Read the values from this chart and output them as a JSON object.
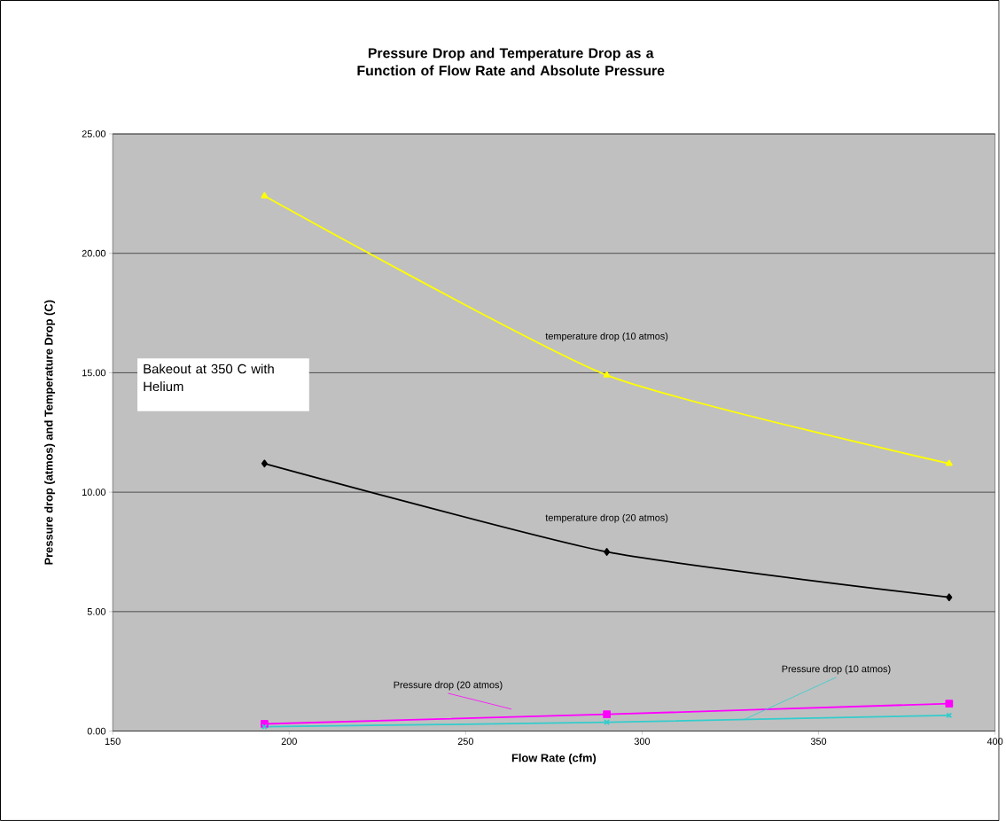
{
  "chart_data": {
    "type": "line",
    "title": "Pressure Drop and Temperature Drop as a Function of Flow Rate and Absolute Pressure",
    "xlabel": "Flow Rate (cfm)",
    "ylabel": "Pressure drop (atmos) and Temperature Drop (C)",
    "x": [
      193,
      290,
      387
    ],
    "series": [
      {
        "name": "temperature drop (10 atmos)",
        "color": "#ffff00",
        "marker": "triangle",
        "values": [
          22.4,
          14.9,
          11.2
        ]
      },
      {
        "name": "temperature drop (20 atmos)",
        "color": "#000000",
        "marker": "diamond",
        "values": [
          11.2,
          7.5,
          5.6
        ]
      },
      {
        "name": "Pressure drop (20 atmos)",
        "color": "#ff00ff",
        "marker": "square",
        "values": [
          0.3,
          0.7,
          1.15
        ]
      },
      {
        "name": "Pressure drop (10 atmos)",
        "color": "#33cccc",
        "marker": "cross",
        "values": [
          0.18,
          0.37,
          0.66
        ]
      }
    ],
    "annotations": [
      "Bakeout at 350 C with Helium"
    ],
    "xlim": [
      150,
      400
    ],
    "ylim": [
      0,
      25
    ],
    "xticks": [
      150,
      200,
      250,
      300,
      350,
      400
    ],
    "yticks": [
      {
        "value": 0,
        "label": "0.00"
      },
      {
        "value": 5,
        "label": "5.00"
      },
      {
        "value": 10,
        "label": "10.00"
      },
      {
        "value": 15,
        "label": "15.00"
      },
      {
        "value": 20,
        "label": "20.00"
      },
      {
        "value": 25,
        "label": "25.00"
      }
    ],
    "grid": "y"
  }
}
